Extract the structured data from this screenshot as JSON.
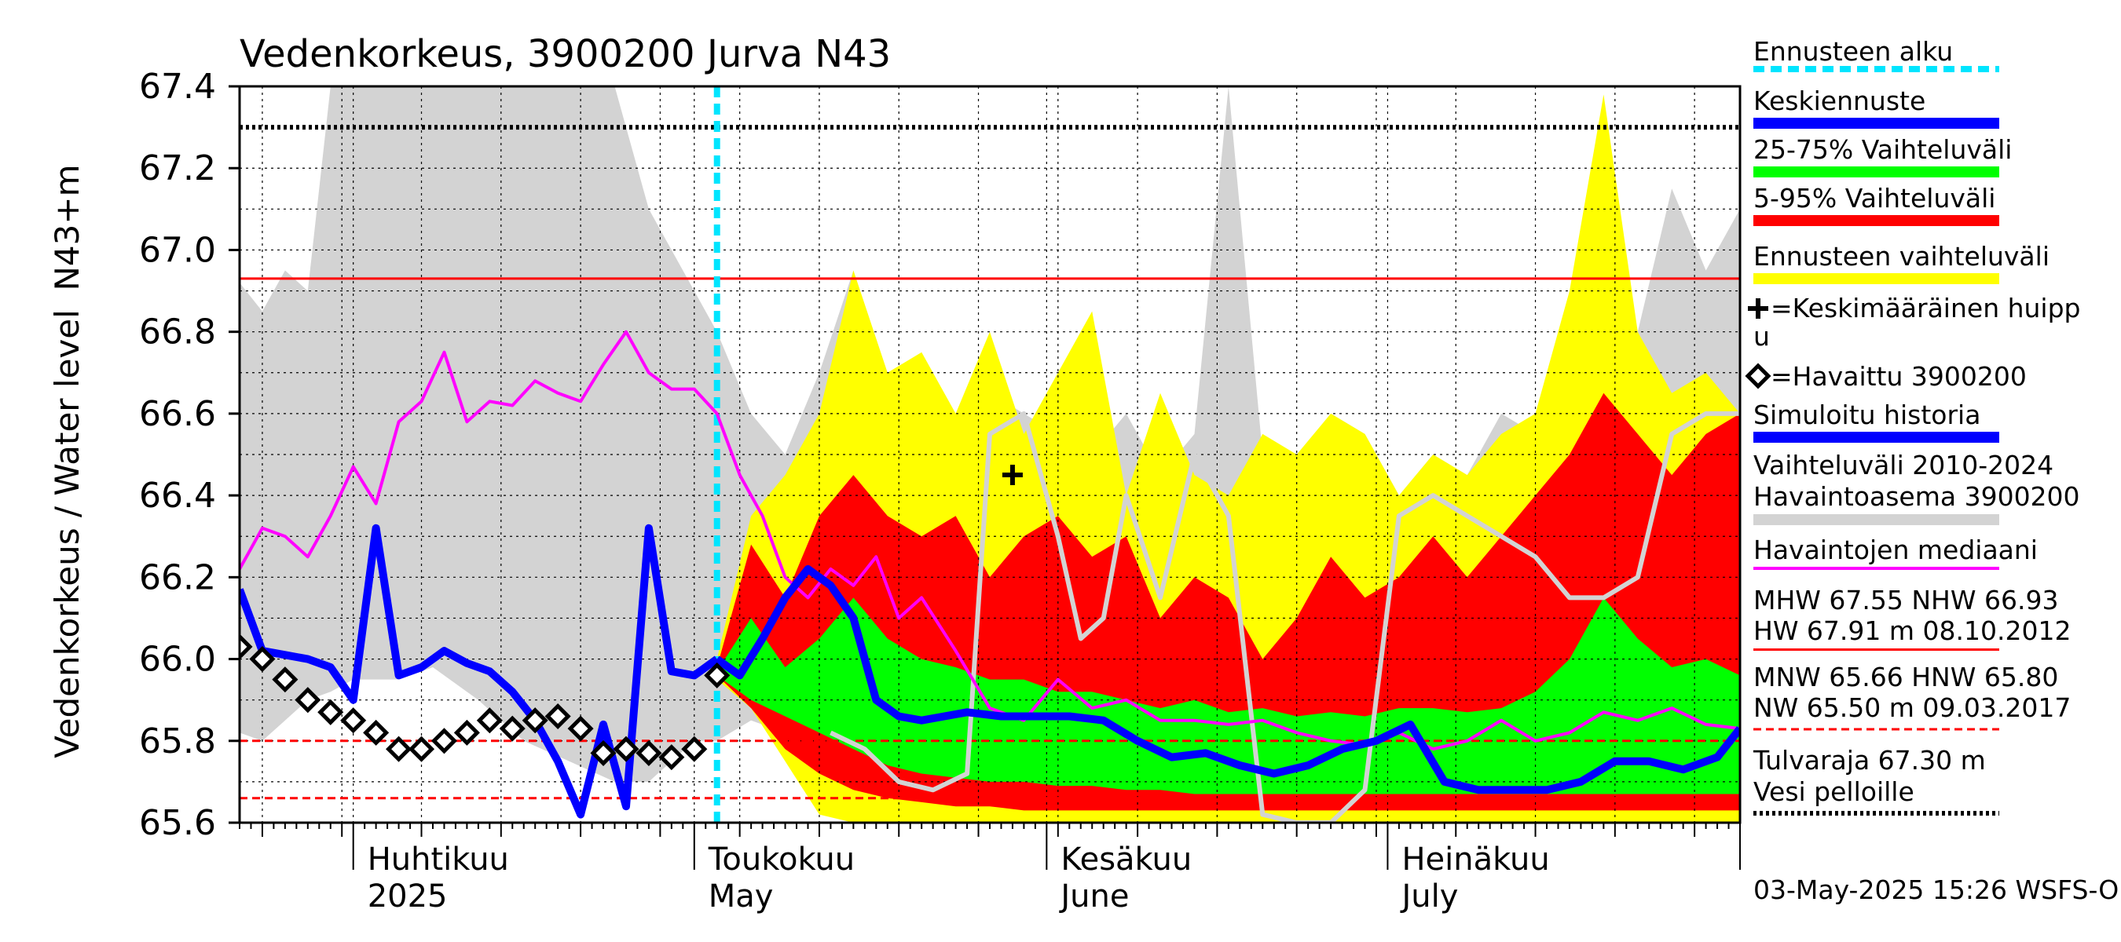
{
  "chart_data": {
    "type": "area",
    "title": "Vedenkorkeus, 3900200 Jurva N43",
    "ylabel_line1": "N43+m",
    "ylabel_line2": "Vedenkorkeus / Water level",
    "ylim": [
      65.6,
      67.4
    ],
    "yticks": [
      "65.6",
      "65.8",
      "66.0",
      "66.2",
      "66.4",
      "66.6",
      "66.8",
      "67.0",
      "67.2",
      "67.4"
    ],
    "xlim": [
      "2025-03-22",
      "2025-08-01"
    ],
    "month_labels": [
      {
        "fi": "Huhtikuu",
        "en": "2025",
        "date": "2025-04-01"
      },
      {
        "fi": "Toukokuu",
        "en": "May",
        "date": "2025-05-01"
      },
      {
        "fi": "Kesäkuu",
        "en": "June",
        "date": "2025-06-01"
      },
      {
        "fi": "Heinäkuu",
        "en": "July",
        "date": "2025-07-01"
      }
    ],
    "forecast_start": "2025-05-03",
    "reference_lines": [
      {
        "name": "Tulvaraja",
        "value": 67.3,
        "style": "dotted",
        "color": "#000000"
      },
      {
        "name": "NHW",
        "value": 66.93,
        "style": "solid",
        "color": "#ff0000"
      },
      {
        "name": "HNW",
        "value": 65.8,
        "style": "dashed",
        "color": "#ff0000"
      },
      {
        "name": "MNW",
        "value": 65.66,
        "style": "dashed",
        "color": "#ff0000"
      }
    ],
    "series": {
      "history_range": {
        "x": [
          "2025-03-22",
          "2025-03-24",
          "2025-03-26",
          "2025-03-28",
          "2025-03-30",
          "2025-04-01",
          "2025-04-03",
          "2025-04-05",
          "2025-04-08",
          "2025-04-12",
          "2025-04-16",
          "2025-04-20",
          "2025-04-24",
          "2025-04-27",
          "2025-04-29",
          "2025-05-01",
          "2025-05-03",
          "2025-05-06",
          "2025-05-09",
          "2025-05-12",
          "2025-05-15",
          "2025-05-18",
          "2025-05-21",
          "2025-05-24",
          "2025-05-27",
          "2025-05-30",
          "2025-06-02",
          "2025-06-05",
          "2025-06-08",
          "2025-06-11",
          "2025-06-14",
          "2025-06-17",
          "2025-06-20",
          "2025-06-23",
          "2025-06-26",
          "2025-06-29",
          "2025-07-02",
          "2025-07-05",
          "2025-07-08",
          "2025-07-11",
          "2025-07-14",
          "2025-07-17",
          "2025-07-20",
          "2025-07-23",
          "2025-07-26",
          "2025-07-29",
          "2025-08-01"
        ],
        "upper": [
          66.92,
          66.85,
          66.95,
          66.9,
          67.4,
          67.4,
          67.4,
          67.4,
          67.4,
          67.4,
          67.4,
          67.4,
          67.4,
          67.1,
          67.0,
          66.9,
          66.8,
          66.6,
          66.5,
          66.7,
          66.95,
          66.55,
          66.75,
          66.5,
          66.65,
          66.6,
          66.55,
          66.5,
          66.6,
          66.45,
          66.55,
          67.4,
          66.5,
          66.4,
          66.6,
          66.55,
          66.4,
          66.5,
          66.45,
          66.6,
          66.55,
          66.7,
          66.55,
          66.8,
          67.15,
          66.95,
          67.1
        ],
        "lower": [
          65.82,
          65.8,
          65.85,
          65.9,
          65.92,
          65.95,
          65.95,
          65.95,
          65.98,
          65.9,
          65.8,
          65.75,
          65.7,
          65.7,
          65.75,
          65.8,
          65.8,
          65.85,
          65.82,
          65.72,
          65.68,
          65.65,
          65.63,
          65.62,
          65.62,
          65.62,
          65.62,
          65.62,
          65.62,
          65.6,
          65.62,
          65.6,
          65.62,
          65.62,
          65.61,
          65.61,
          65.61,
          65.61,
          65.61,
          65.61,
          65.61,
          65.61,
          65.61,
          65.61,
          65.61,
          65.61,
          65.61
        ]
      },
      "forecast_range": {
        "x": [
          "2025-05-03",
          "2025-05-06",
          "2025-05-09",
          "2025-05-12",
          "2025-05-15",
          "2025-05-18",
          "2025-05-21",
          "2025-05-24",
          "2025-05-27",
          "2025-05-30",
          "2025-06-02",
          "2025-06-05",
          "2025-06-08",
          "2025-06-11",
          "2025-06-14",
          "2025-06-17",
          "2025-06-20",
          "2025-06-23",
          "2025-06-26",
          "2025-06-29",
          "2025-07-02",
          "2025-07-05",
          "2025-07-08",
          "2025-07-11",
          "2025-07-14",
          "2025-07-17",
          "2025-07-20",
          "2025-07-23",
          "2025-07-26",
          "2025-07-29",
          "2025-08-01"
        ],
        "upper": [
          66.0,
          66.35,
          66.45,
          66.6,
          66.95,
          66.7,
          66.75,
          66.6,
          66.8,
          66.55,
          66.7,
          66.85,
          66.4,
          66.65,
          66.45,
          66.4,
          66.55,
          66.5,
          66.6,
          66.55,
          66.4,
          66.5,
          66.45,
          66.55,
          66.6,
          66.9,
          67.38,
          66.8,
          66.65,
          66.7,
          66.6
        ],
        "lower": [
          65.95,
          65.88,
          65.75,
          65.62,
          65.6,
          65.6,
          65.6,
          65.6,
          65.6,
          65.6,
          65.6,
          65.6,
          65.6,
          65.6,
          65.6,
          65.6,
          65.6,
          65.6,
          65.6,
          65.6,
          65.6,
          65.6,
          65.6,
          65.6,
          65.6,
          65.6,
          65.6,
          65.6,
          65.6,
          65.6,
          65.6
        ]
      },
      "p5_95": {
        "x": [
          "2025-05-03",
          "2025-05-06",
          "2025-05-09",
          "2025-05-12",
          "2025-05-15",
          "2025-05-18",
          "2025-05-21",
          "2025-05-24",
          "2025-05-27",
          "2025-05-30",
          "2025-06-02",
          "2025-06-05",
          "2025-06-08",
          "2025-06-11",
          "2025-06-14",
          "2025-06-17",
          "2025-06-20",
          "2025-06-23",
          "2025-06-26",
          "2025-06-29",
          "2025-07-02",
          "2025-07-05",
          "2025-07-08",
          "2025-07-11",
          "2025-07-14",
          "2025-07-17",
          "2025-07-20",
          "2025-07-23",
          "2025-07-26",
          "2025-07-29",
          "2025-08-01"
        ],
        "upper": [
          65.98,
          66.28,
          66.15,
          66.35,
          66.45,
          66.35,
          66.3,
          66.35,
          66.2,
          66.3,
          66.35,
          66.25,
          66.3,
          66.1,
          66.2,
          66.15,
          66.0,
          66.1,
          66.25,
          66.15,
          66.2,
          66.3,
          66.2,
          66.3,
          66.4,
          66.5,
          66.65,
          66.55,
          66.45,
          66.55,
          66.6
        ],
        "lower": [
          65.96,
          65.88,
          65.78,
          65.72,
          65.68,
          65.66,
          65.65,
          65.64,
          65.64,
          65.63,
          65.63,
          65.63,
          65.63,
          65.63,
          65.63,
          65.63,
          65.63,
          65.63,
          65.63,
          65.63,
          65.63,
          65.63,
          65.63,
          65.63,
          65.63,
          65.63,
          65.63,
          65.63,
          65.63,
          65.63,
          65.63
        ]
      },
      "p25_75": {
        "x": [
          "2025-05-03",
          "2025-05-06",
          "2025-05-09",
          "2025-05-12",
          "2025-05-15",
          "2025-05-18",
          "2025-05-21",
          "2025-05-24",
          "2025-05-27",
          "2025-05-30",
          "2025-06-02",
          "2025-06-05",
          "2025-06-08",
          "2025-06-11",
          "2025-06-14",
          "2025-06-17",
          "2025-06-20",
          "2025-06-23",
          "2025-06-26",
          "2025-06-29",
          "2025-07-02",
          "2025-07-05",
          "2025-07-08",
          "2025-07-11",
          "2025-07-14",
          "2025-07-17",
          "2025-07-20",
          "2025-07-23",
          "2025-07-26",
          "2025-07-29",
          "2025-08-01"
        ],
        "upper": [
          65.97,
          66.1,
          65.98,
          66.05,
          66.15,
          66.05,
          66.0,
          65.98,
          65.95,
          65.95,
          65.92,
          65.92,
          65.9,
          65.88,
          65.9,
          65.87,
          65.88,
          65.86,
          65.87,
          65.86,
          65.88,
          65.88,
          65.87,
          65.88,
          65.92,
          66.0,
          66.15,
          66.05,
          65.98,
          66.0,
          65.96
        ],
        "lower": [
          65.96,
          65.9,
          65.86,
          65.82,
          65.78,
          65.74,
          65.72,
          65.71,
          65.7,
          65.7,
          65.69,
          65.69,
          65.68,
          65.68,
          65.67,
          65.67,
          65.67,
          65.67,
          65.67,
          65.67,
          65.67,
          65.67,
          65.67,
          65.67,
          65.67,
          65.67,
          65.67,
          65.67,
          65.67,
          65.67,
          65.67
        ]
      },
      "median_obs": {
        "x": [
          "2025-03-22",
          "2025-03-24",
          "2025-03-26",
          "2025-03-28",
          "2025-03-30",
          "2025-04-01",
          "2025-04-03",
          "2025-04-05",
          "2025-04-07",
          "2025-04-09",
          "2025-04-11",
          "2025-04-13",
          "2025-04-15",
          "2025-04-17",
          "2025-04-19",
          "2025-04-21",
          "2025-04-23",
          "2025-04-25",
          "2025-04-27",
          "2025-04-29",
          "2025-05-01",
          "2025-05-03",
          "2025-05-05",
          "2025-05-07",
          "2025-05-09",
          "2025-05-11",
          "2025-05-13",
          "2025-05-15",
          "2025-05-17",
          "2025-05-19",
          "2025-05-21",
          "2025-05-24",
          "2025-05-27",
          "2025-05-30",
          "2025-06-02",
          "2025-06-05",
          "2025-06-08",
          "2025-06-11",
          "2025-06-14",
          "2025-06-17",
          "2025-06-20",
          "2025-06-23",
          "2025-06-26",
          "2025-06-29",
          "2025-07-02",
          "2025-07-05",
          "2025-07-08",
          "2025-07-11",
          "2025-07-14",
          "2025-07-17",
          "2025-07-20",
          "2025-07-23",
          "2025-07-26",
          "2025-07-29",
          "2025-08-01"
        ],
        "values": [
          66.22,
          66.32,
          66.3,
          66.25,
          66.35,
          66.47,
          66.38,
          66.58,
          66.63,
          66.75,
          66.58,
          66.63,
          66.62,
          66.68,
          66.65,
          66.63,
          66.72,
          66.8,
          66.7,
          66.66,
          66.66,
          66.6,
          66.45,
          66.35,
          66.2,
          66.15,
          66.22,
          66.18,
          66.25,
          66.1,
          66.15,
          66.02,
          65.88,
          65.85,
          65.95,
          65.88,
          65.9,
          65.85,
          65.85,
          65.84,
          65.85,
          65.82,
          65.8,
          65.79,
          65.82,
          65.78,
          65.8,
          65.85,
          65.8,
          65.82,
          65.87,
          65.85,
          65.88,
          65.84,
          65.83
        ]
      },
      "simulated_history": {
        "x": [
          "2025-05-03",
          "2025-05-05",
          "2025-05-07",
          "2025-05-09",
          "2025-05-11",
          "2025-05-13",
          "2025-05-15",
          "2025-05-17",
          "2025-05-19",
          "2025-05-21",
          "2025-05-23",
          "2025-05-25",
          "2025-05-28",
          "2025-05-31",
          "2025-06-03",
          "2025-06-06",
          "2025-06-09",
          "2025-06-12",
          "2025-06-15",
          "2025-06-18",
          "2025-06-21",
          "2025-06-24",
          "2025-06-27",
          "2025-06-30",
          "2025-07-03",
          "2025-07-06",
          "2025-07-09",
          "2025-07-12",
          "2025-07-15",
          "2025-07-18",
          "2025-07-21",
          "2025-07-24",
          "2025-07-27",
          "2025-07-30",
          "2025-08-01"
        ],
        "values": [
          66.0,
          65.96,
          66.05,
          66.15,
          66.22,
          66.18,
          66.1,
          65.9,
          65.86,
          65.85,
          65.86,
          65.87,
          65.86,
          65.86,
          65.86,
          65.85,
          65.8,
          65.76,
          65.77,
          65.74,
          65.72,
          65.74,
          65.78,
          65.8,
          65.84,
          65.7,
          65.68,
          65.68,
          65.68,
          65.7,
          65.75,
          65.75,
          65.73,
          65.76,
          65.83
        ]
      },
      "grey_history_line": {
        "x": [
          "2025-05-13",
          "2025-05-16",
          "2025-05-19",
          "2025-05-22",
          "2025-05-25",
          "2025-05-27",
          "2025-05-30",
          "2025-06-02",
          "2025-06-04",
          "2025-06-06",
          "2025-06-08",
          "2025-06-11",
          "2025-06-14",
          "2025-06-17",
          "2025-06-20",
          "2025-06-23",
          "2025-06-26",
          "2025-06-29",
          "2025-07-02",
          "2025-07-05",
          "2025-07-08",
          "2025-07-11",
          "2025-07-14",
          "2025-07-17",
          "2025-07-20",
          "2025-07-23",
          "2025-07-26",
          "2025-07-29",
          "2025-08-01"
        ],
        "values": [
          65.82,
          65.78,
          65.7,
          65.68,
          65.72,
          66.55,
          66.6,
          66.3,
          66.05,
          66.1,
          66.4,
          66.15,
          66.5,
          66.35,
          65.62,
          65.6,
          65.6,
          65.68,
          66.35,
          66.4,
          66.35,
          66.3,
          66.25,
          66.15,
          66.15,
          66.2,
          66.55,
          66.6,
          66.6
        ]
      },
      "observed": {
        "x": [
          "2025-03-22",
          "2025-03-24",
          "2025-03-26",
          "2025-03-28",
          "2025-03-30",
          "2025-04-01",
          "2025-04-03",
          "2025-04-05",
          "2025-04-07",
          "2025-04-09",
          "2025-04-11",
          "2025-04-13",
          "2025-04-15",
          "2025-04-17",
          "2025-04-19",
          "2025-04-21",
          "2025-04-23",
          "2025-04-25",
          "2025-04-27",
          "2025-04-29",
          "2025-05-01",
          "2025-05-03"
        ],
        "values": [
          66.03,
          66.0,
          65.95,
          65.9,
          65.87,
          65.85,
          65.82,
          65.78,
          65.78,
          65.8,
          65.82,
          65.85,
          65.83,
          65.85,
          65.86,
          65.83,
          65.77,
          65.78,
          65.77,
          65.76,
          65.78,
          65.96
        ]
      },
      "simulated_obs_period": {
        "x": [
          "2025-03-22",
          "2025-03-24",
          "2025-03-26",
          "2025-03-28",
          "2025-03-30",
          "2025-04-01",
          "2025-04-03",
          "2025-04-05",
          "2025-04-07",
          "2025-04-09",
          "2025-04-11",
          "2025-04-13",
          "2025-04-15",
          "2025-04-17",
          "2025-04-19",
          "2025-04-21",
          "2025-04-23",
          "2025-04-25",
          "2025-04-27",
          "2025-04-29",
          "2025-05-01",
          "2025-05-03"
        ],
        "values": [
          66.17,
          66.02,
          66.01,
          66.0,
          65.98,
          65.9,
          66.32,
          65.96,
          65.98,
          66.02,
          65.99,
          65.97,
          65.92,
          65.85,
          65.75,
          65.62,
          65.84,
          65.64,
          66.32,
          65.97,
          65.96,
          66.0
        ]
      }
    },
    "mean_peak": {
      "x": "2025-05-29",
      "y": 66.45
    },
    "legend": {
      "forecast_start": "Ennusteen alku",
      "mean_forecast": "Keskiennuste",
      "p25_75": "25-75% Vaihteluväli",
      "p5_95": "5-95% Vaihteluväli",
      "forecast_range": "Ennusteen vaihteluväli",
      "mean_peak_line1": "=Keskimääräinen huipp",
      "mean_peak_line2": "u",
      "observed": "=Havaittu 3900200",
      "simulated_history": "Simuloitu historia",
      "history_range_line1": "Vaihteluväli 2010-2024",
      "history_range_line2": " Havaintoasema 3900200",
      "median": "Havaintojen mediaani",
      "stats1_line1": "MHW  67.55 NHW  66.93",
      "stats1_line2": "HW  67.91 m 08.10.2012",
      "stats2_line1": "MNW  65.66 HNW  65.80",
      "stats2_line2": "NW  65.50 m 09.03.2017",
      "flood_line1": "Tulvaraja 67.30 m",
      "flood_line2": "Vesi pelloille"
    },
    "footer": "03-May-2025 15:26 WSFS-O",
    "colors": {
      "history_range": "#d3d3d3",
      "forecast_range": "#ffff00",
      "p5_95": "#ff0000",
      "p25_75": "#00ff00",
      "mean": "#0000ff",
      "median": "#ff00ff",
      "grey_line": "#d3d3d3",
      "forecast_start": "#00e5ff"
    }
  }
}
